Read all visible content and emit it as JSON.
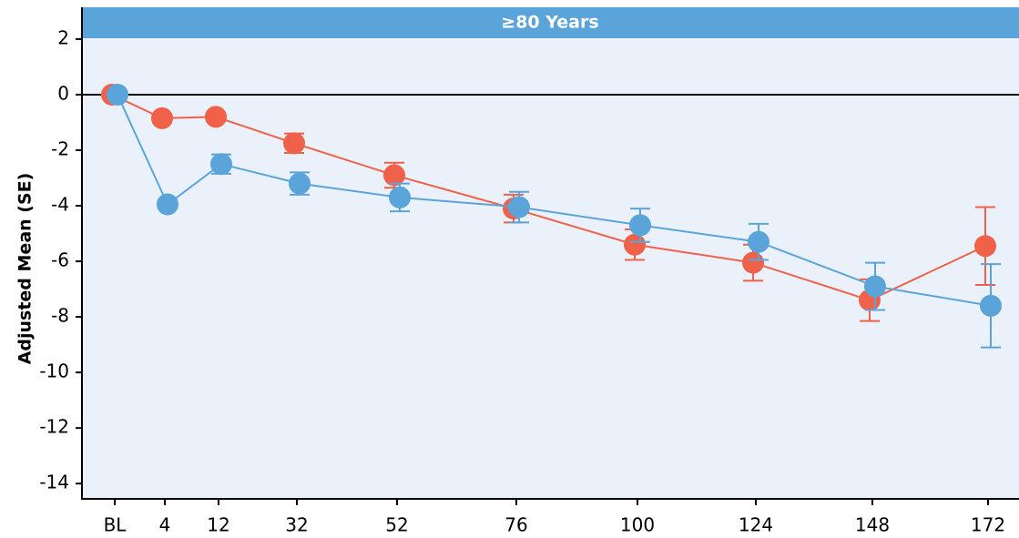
{
  "chart_data": {
    "type": "line",
    "title": "≥80 Years",
    "y_label": "Adjusted Mean (SE)",
    "categories": [
      "BL",
      "4",
      "12",
      "32",
      "52",
      "76",
      "100",
      "124",
      "148",
      "172"
    ],
    "series": [
      {
        "color": "#f0614a",
        "values": [
          0,
          -0.85,
          -0.8,
          -1.75,
          -2.9,
          -4.1,
          -5.4,
          -6.05,
          -7.4,
          -5.45
        ],
        "errors": [
          0.1,
          0.15,
          0.15,
          0.35,
          0.45,
          0.5,
          0.55,
          0.65,
          0.75,
          1.4
        ]
      },
      {
        "color": "#5ba4d9",
        "values": [
          0,
          -3.95,
          -2.5,
          -3.2,
          -3.7,
          -4.05,
          -4.7,
          -5.3,
          -6.9,
          -7.6
        ],
        "errors": [
          0.1,
          0.15,
          0.35,
          0.4,
          0.5,
          0.55,
          0.6,
          0.65,
          0.85,
          1.5
        ]
      }
    ],
    "ylim": [
      -14.55,
      2.03
    ],
    "yticks": [
      2,
      0,
      -2,
      -4,
      -6,
      -8,
      -10,
      -12,
      -14
    ],
    "zero_line": true
  }
}
